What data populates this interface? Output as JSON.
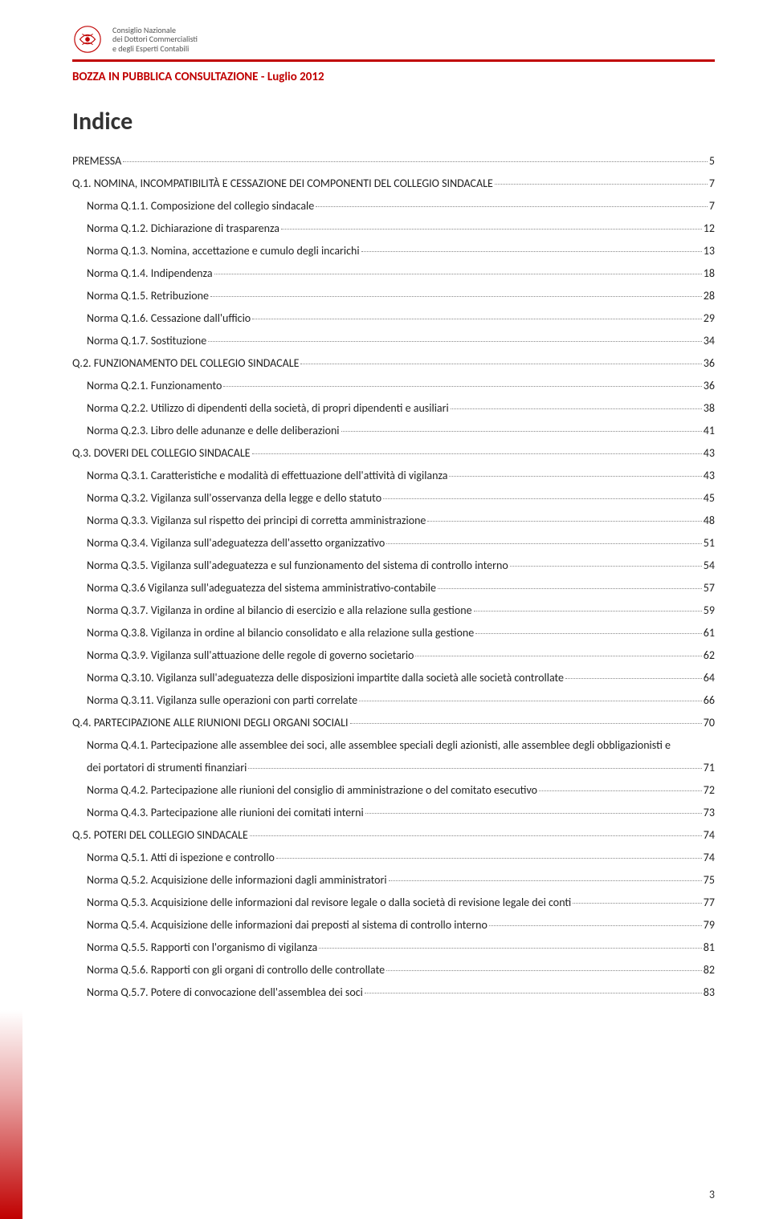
{
  "header": {
    "org_line1": "Consiglio Nazionale",
    "org_line2": "dei Dottori Commercialisti",
    "org_line3": "e degli Esperti Contabili",
    "draft_label": "BOZZA IN PUBBLICA CONSULTAZIONE - Luglio 2012"
  },
  "title": "Indice",
  "page_number": "3",
  "toc": [
    {
      "level": 1,
      "label": "PREMESSA",
      "page": "5"
    },
    {
      "level": 1,
      "label": "Q.1. NOMINA, INCOMPATIBILITÀ E CESSAZIONE DEI COMPONENTI DEL COLLEGIO SINDACALE",
      "page": "7"
    },
    {
      "level": 2,
      "label": "Norma Q.1.1. Composizione del collegio sindacale",
      "page": "7"
    },
    {
      "level": 2,
      "label": "Norma Q.1.2. Dichiarazione di trasparenza",
      "page": "12"
    },
    {
      "level": 2,
      "label": "Norma Q.1.3. Nomina, accettazione e cumulo degli incarichi",
      "page": "13"
    },
    {
      "level": 2,
      "label": "Norma Q.1.4. Indipendenza",
      "page": "18"
    },
    {
      "level": 2,
      "label": "Norma Q.1.5. Retribuzione",
      "page": "28"
    },
    {
      "level": 2,
      "label": "Norma Q.1.6. Cessazione dall'ufficio",
      "page": "29"
    },
    {
      "level": 2,
      "label": "Norma Q.1.7. Sostituzione",
      "page": "34"
    },
    {
      "level": 1,
      "label": "Q.2. FUNZIONAMENTO DEL COLLEGIO SINDACALE",
      "page": "36"
    },
    {
      "level": 2,
      "label": "Norma Q.2.1. Funzionamento",
      "page": "36"
    },
    {
      "level": 2,
      "label": "Norma Q.2.2. Utilizzo di dipendenti della società, di propri dipendenti e ausiliari",
      "page": "38"
    },
    {
      "level": 2,
      "label": "Norma Q.2.3. Libro delle adunanze e delle deliberazioni",
      "page": "41"
    },
    {
      "level": 1,
      "label": "Q.3. DOVERI DEL COLLEGIO SINDACALE",
      "page": "43"
    },
    {
      "level": 2,
      "label": "Norma Q.3.1. Caratteristiche e modalità di effettuazione dell'attività di vigilanza",
      "page": "43"
    },
    {
      "level": 2,
      "label": "Norma Q.3.2. Vigilanza sull'osservanza della legge e dello statuto",
      "page": "45"
    },
    {
      "level": 2,
      "label": "Norma Q.3.3. Vigilanza sul rispetto dei principi di corretta amministrazione",
      "page": "48"
    },
    {
      "level": 2,
      "label": "Norma Q.3.4. Vigilanza sull'adeguatezza dell'assetto organizzativo",
      "page": "51"
    },
    {
      "level": 2,
      "label": "Norma Q.3.5. Vigilanza sull'adeguatezza e sul funzionamento del sistema di controllo interno",
      "page": "54"
    },
    {
      "level": 2,
      "label": "Norma Q.3.6 Vigilanza sull'adeguatezza del sistema amministrativo-contabile",
      "page": "57"
    },
    {
      "level": 2,
      "label": "Norma Q.3.7. Vigilanza in ordine al bilancio di esercizio e alla relazione sulla gestione",
      "page": "59"
    },
    {
      "level": 2,
      "label": "Norma Q.3.8. Vigilanza in ordine al bilancio consolidato e alla relazione sulla gestione",
      "page": "61"
    },
    {
      "level": 2,
      "label": "Norma Q.3.9. Vigilanza sull'attuazione delle regole di governo societario",
      "page": "62"
    },
    {
      "level": 2,
      "label": "Norma Q.3.10. Vigilanza sull'adeguatezza delle disposizioni impartite dalla società alle società controllate",
      "page": "64"
    },
    {
      "level": 2,
      "label": "Norma Q.3.11. Vigilanza sulle operazioni con parti correlate",
      "page": "66"
    },
    {
      "level": 1,
      "label": "Q.4. PARTECIPAZIONE ALLE RIUNIONI DEGLI ORGANI SOCIALI",
      "page": "70"
    },
    {
      "level": 2,
      "label": "Norma Q.4.1. Partecipazione alle assemblee dei soci, alle assemblee speciali degli azionisti, alle assemblee degli obbligazionisti e",
      "cont": "dei portatori di strumenti finanziari",
      "page": "71"
    },
    {
      "level": 2,
      "label": "Norma Q.4.2. Partecipazione alle riunioni del consiglio di amministrazione o del comitato esecutivo",
      "page": "72"
    },
    {
      "level": 2,
      "label": "Norma Q.4.3. Partecipazione alle riunioni dei comitati interni",
      "page": "73"
    },
    {
      "level": 1,
      "label": "Q.5. POTERI DEL COLLEGIO SINDACALE",
      "page": "74"
    },
    {
      "level": 2,
      "label": "Norma Q.5.1. Atti di ispezione e controllo",
      "page": "74"
    },
    {
      "level": 2,
      "label": "Norma Q.5.2. Acquisizione delle informazioni dagli amministratori",
      "page": "75"
    },
    {
      "level": 2,
      "label": "Norma Q.5.3. Acquisizione delle informazioni dal revisore legale o dalla società di revisione legale dei conti",
      "page": "77"
    },
    {
      "level": 2,
      "label": "Norma Q.5.4. Acquisizione delle informazioni dai preposti al sistema di controllo interno",
      "page": "79"
    },
    {
      "level": 2,
      "label": "Norma Q.5.5. Rapporti con l'organismo di vigilanza",
      "page": "81"
    },
    {
      "level": 2,
      "label": "Norma Q.5.6. Rapporti con gli organi di controllo delle controllate",
      "page": "82"
    },
    {
      "level": 2,
      "label": "Norma Q.5.7. Potere di convocazione dell'assemblea dei soci",
      "page": "83"
    }
  ]
}
